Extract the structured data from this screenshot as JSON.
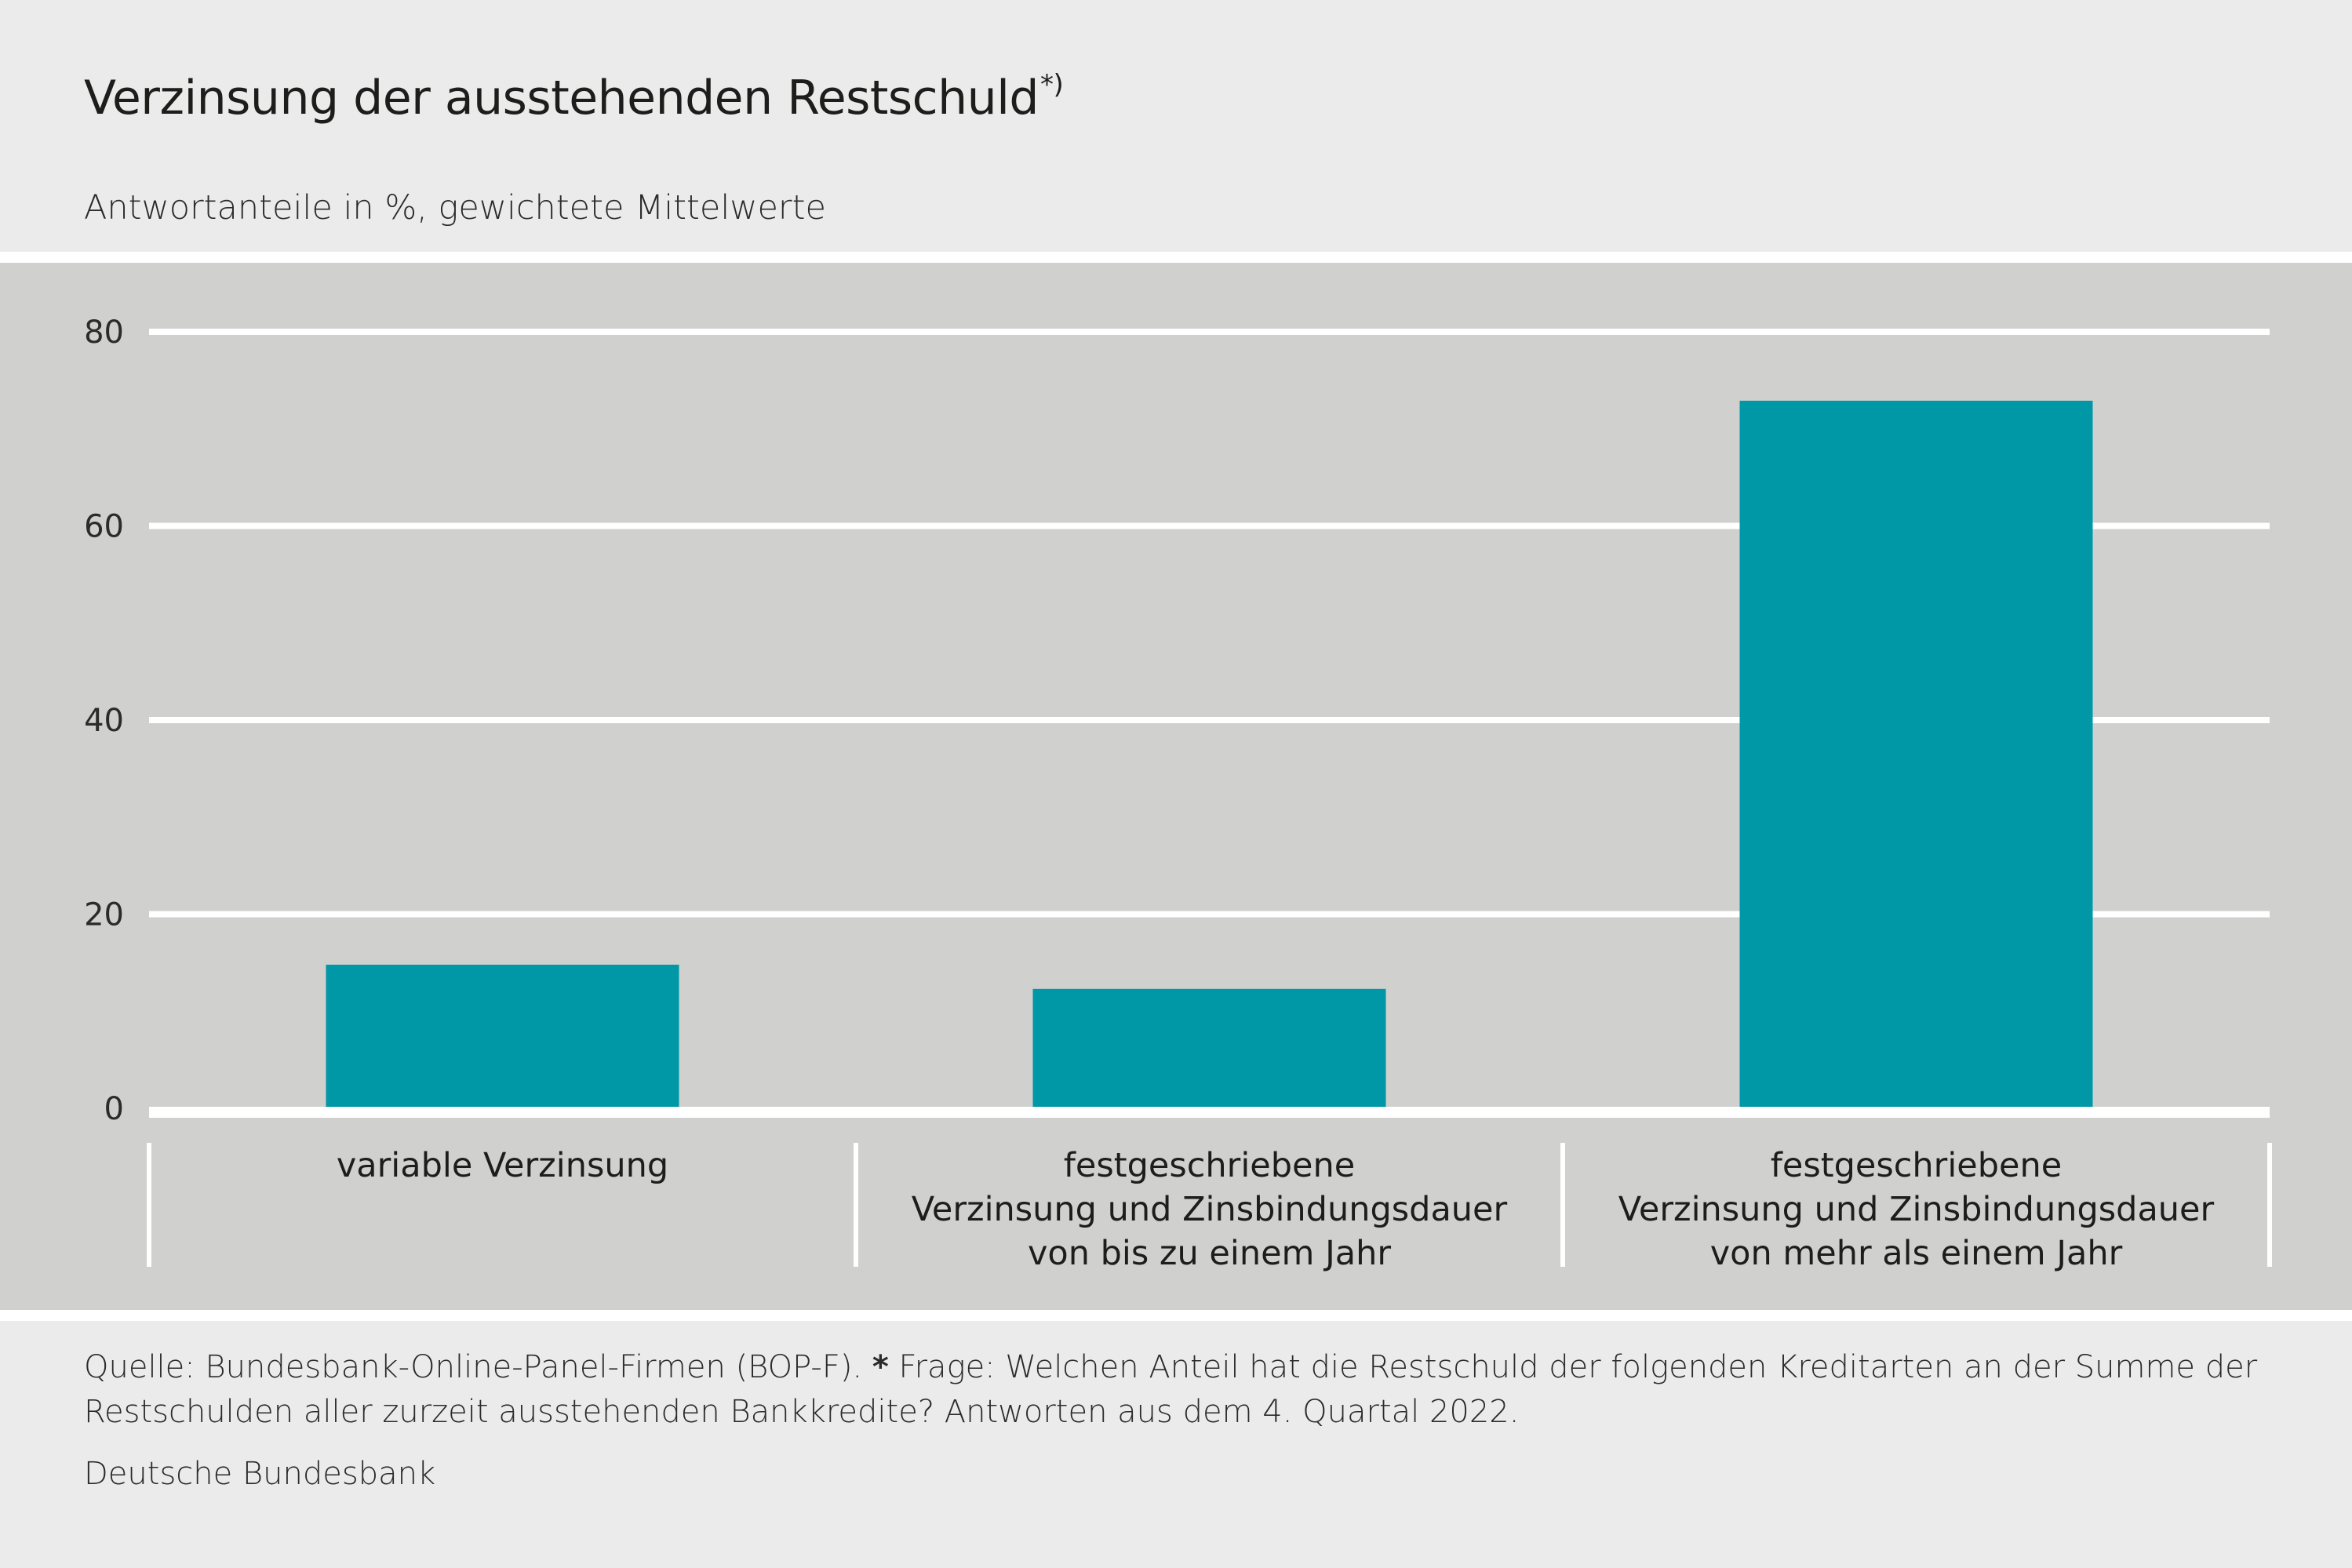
{
  "header": {
    "title": "Verzinsung der ausstehenden Restschuld",
    "title_footnote_marker": "*)",
    "subtitle": "Antwortanteile in %, gewichtete Mittelwerte"
  },
  "colors": {
    "bar": "#0097a7",
    "panel_background": "#d0d0ce",
    "page_background": "#ebebeb",
    "gridline": "#ffffff"
  },
  "chart_data": {
    "type": "bar",
    "title": "Verzinsung der ausstehenden Restschuld*)",
    "subtitle": "Antwortanteile in %, gewichtete Mittelwerte",
    "xlabel": "",
    "ylabel": "",
    "categories": [
      [
        "variable Verzinsung"
      ],
      [
        "festgeschriebene",
        "Verzinsung und Zinsbindungsdauer",
        "von bis zu einem Jahr"
      ],
      [
        "festgeschriebene",
        "Verzinsung und Zinsbindungsdauer",
        "von mehr als einem Jahr"
      ]
    ],
    "category_names": [
      "variable Verzinsung",
      "festgeschriebene Verzinsung und Zinsbindungsdauer von bis zu einem Jahr",
      "festgeschriebene Verzinsung und Zinsbindungsdauer von mehr als einem Jahr"
    ],
    "values": [
      14.8,
      12.3,
      72.9
    ],
    "ylim": [
      0,
      80
    ],
    "yticks": [
      0,
      20,
      40,
      60,
      80
    ],
    "grid": true,
    "legend": "none"
  },
  "footer": {
    "source": "Quelle: Bundesbank-Online-Panel-Firmen (BOP-F).",
    "note_marker": "*",
    "note": "Frage: Welchen Anteil hat die Restschuld der folgenden Kreditarten an der Summe der Restschulden aller zurzeit ausstehenden Bankkredite? Antworten aus dem 4. Quartal 2022.",
    "credit": "Deutsche Bundesbank"
  }
}
